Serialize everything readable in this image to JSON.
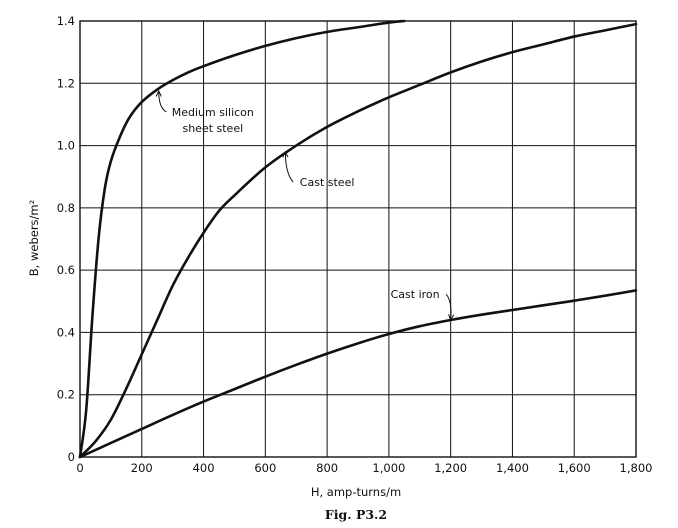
{
  "chart_data": {
    "type": "line",
    "title": "",
    "xlabel": "H, amp-turns/m",
    "ylabel": "B, webers/m²",
    "xlim": [
      0,
      1800
    ],
    "ylim": [
      0,
      1.4
    ],
    "x_ticks": [
      0,
      200,
      400,
      600,
      800,
      1000,
      1200,
      1400,
      1600,
      1800
    ],
    "x_tick_labels": [
      "0",
      "200",
      "400",
      "600",
      "800",
      "1,000",
      "1,200",
      "1,400",
      "1,600",
      "1,800"
    ],
    "y_ticks": [
      0,
      0.2,
      0.4,
      0.6,
      0.8,
      1.0,
      1.2,
      1.4
    ],
    "y_tick_labels": [
      "0",
      "0.2",
      "0.4",
      "0.6",
      "0.8",
      "1.0",
      "1.2",
      "1.4"
    ],
    "grid": true,
    "series": [
      {
        "name": "Medium silicon sheet steel",
        "x": [
          0,
          20,
          40,
          60,
          80,
          100,
          130,
          160,
          200,
          250,
          300,
          350,
          400,
          500,
          600,
          700,
          800,
          900,
          1000,
          1050
        ],
        "y": [
          0,
          0.15,
          0.45,
          0.7,
          0.86,
          0.95,
          1.03,
          1.09,
          1.14,
          1.18,
          1.21,
          1.235,
          1.255,
          1.29,
          1.32,
          1.345,
          1.365,
          1.38,
          1.395,
          1.4
        ]
      },
      {
        "name": "Cast steel",
        "x": [
          0,
          50,
          100,
          150,
          200,
          250,
          300,
          350,
          400,
          450,
          500,
          600,
          700,
          800,
          900,
          1000,
          1100,
          1200,
          1300,
          1400,
          1500,
          1600,
          1700,
          1800
        ],
        "y": [
          0,
          0.05,
          0.12,
          0.22,
          0.33,
          0.44,
          0.55,
          0.64,
          0.72,
          0.79,
          0.84,
          0.93,
          1.0,
          1.06,
          1.11,
          1.155,
          1.195,
          1.235,
          1.27,
          1.3,
          1.325,
          1.35,
          1.37,
          1.39
        ]
      },
      {
        "name": "Cast iron",
        "x": [
          0,
          100,
          200,
          300,
          400,
          500,
          600,
          700,
          800,
          900,
          1000,
          1100,
          1200,
          1300,
          1400,
          1500,
          1600,
          1700,
          1800
        ],
        "y": [
          0,
          0.045,
          0.09,
          0.135,
          0.178,
          0.218,
          0.258,
          0.296,
          0.332,
          0.365,
          0.395,
          0.42,
          0.44,
          0.457,
          0.472,
          0.487,
          0.502,
          0.518,
          0.535
        ]
      }
    ],
    "annotations": [
      {
        "lines": [
          "Medium silicon",
          "sheet steel"
        ],
        "series": "Medium silicon sheet steel",
        "label_at": [
          430,
          1.095
        ],
        "arrow_to": [
          255,
          1.175
        ]
      },
      {
        "lines": [
          "Cast steel"
        ],
        "series": "Cast steel",
        "label_at": [
          800,
          0.87
        ],
        "arrow_to": [
          665,
          0.98
        ]
      },
      {
        "lines": [
          "Cast iron"
        ],
        "series": "Cast iron",
        "label_at": [
          1085,
          0.51
        ],
        "arrow_to": [
          1200,
          0.44
        ]
      }
    ]
  },
  "caption": "Fig. P3.2",
  "styles": {
    "line_color": "#111111",
    "background": "#ffffff"
  }
}
